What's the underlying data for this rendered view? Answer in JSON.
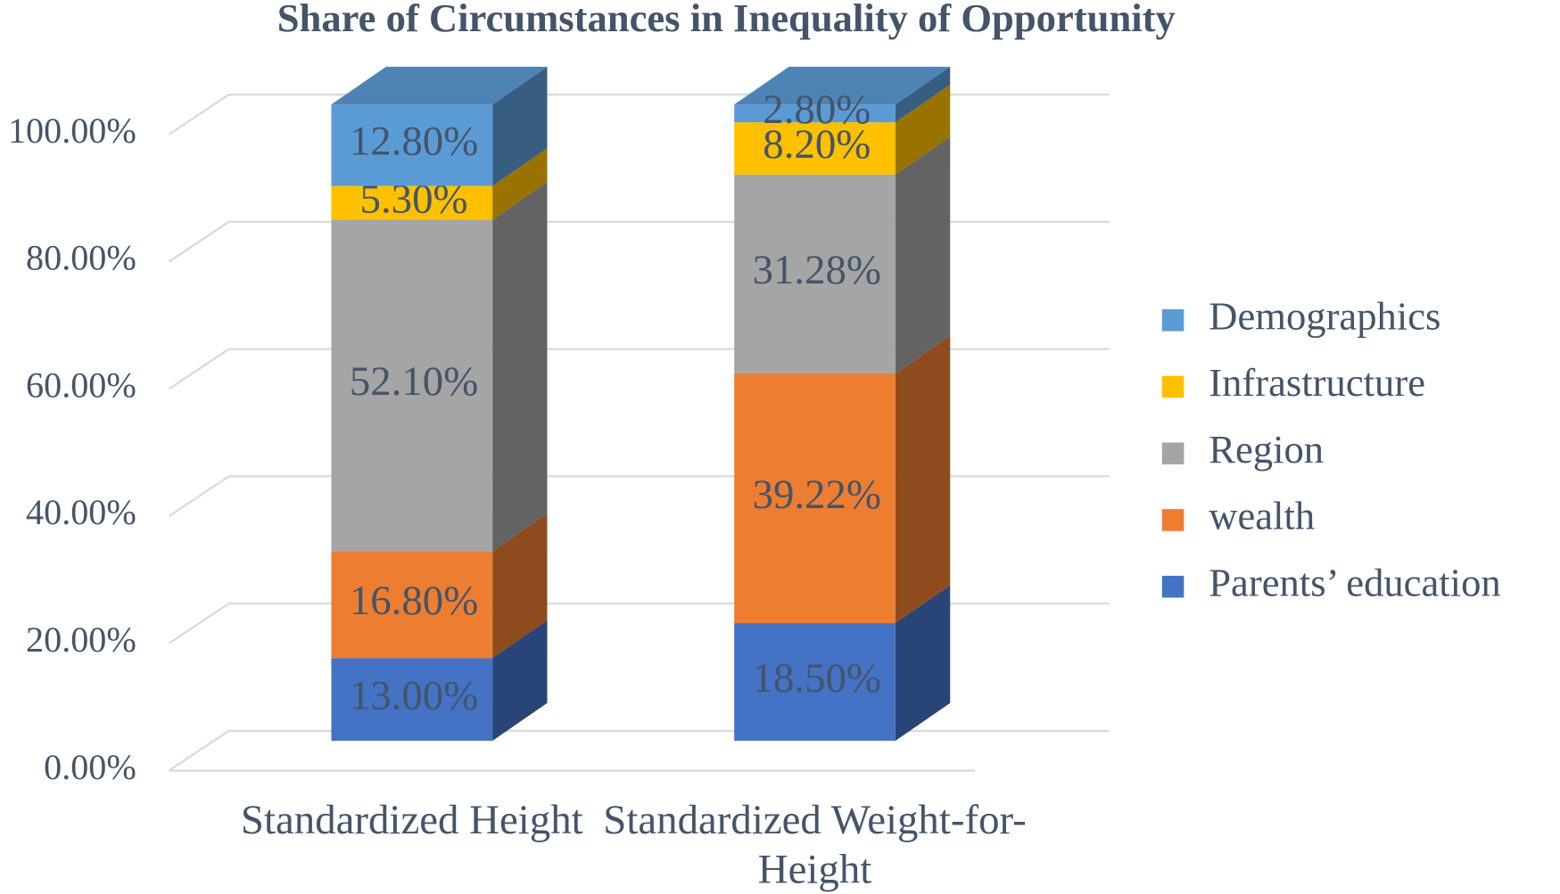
{
  "chart_data": {
    "type": "bar3d_stacked",
    "title": "Share of Circumstances in Inequality of Opportunity",
    "categories": [
      "Standardized Height",
      "Standardized Weight-for-Height"
    ],
    "series": [
      {
        "name": "Parents’ education",
        "color": "#4472c4",
        "values": [
          13.0,
          18.5
        ],
        "value_labels": [
          "13.00%",
          "18.50%"
        ]
      },
      {
        "name": "wealth",
        "color": "#ed7d31",
        "values": [
          16.8,
          39.22
        ],
        "value_labels": [
          "16.80%",
          "39.22%"
        ]
      },
      {
        "name": "Region",
        "color": "#a5a5a5",
        "values": [
          52.1,
          31.28
        ],
        "value_labels": [
          "52.10%",
          "31.28%"
        ]
      },
      {
        "name": "Infrastructure",
        "color": "#ffc000",
        "values": [
          5.3,
          8.2
        ],
        "value_labels": [
          "5.30%",
          "8.20%"
        ]
      },
      {
        "name": "Demographics",
        "color": "#5b9bd5",
        "values": [
          12.8,
          2.8
        ],
        "value_labels": [
          "12.80%",
          "2.80%"
        ]
      }
    ],
    "ylim": [
      0,
      100
    ],
    "yticks": [
      {
        "value": 0,
        "label": "0.00%"
      },
      {
        "value": 20,
        "label": "20.00%"
      },
      {
        "value": 40,
        "label": "40.00%"
      },
      {
        "value": 60,
        "label": "60.00%"
      },
      {
        "value": 80,
        "label": "80.00%"
      },
      {
        "value": 100,
        "label": "100.00%"
      }
    ],
    "grid": true,
    "legend": "right"
  }
}
